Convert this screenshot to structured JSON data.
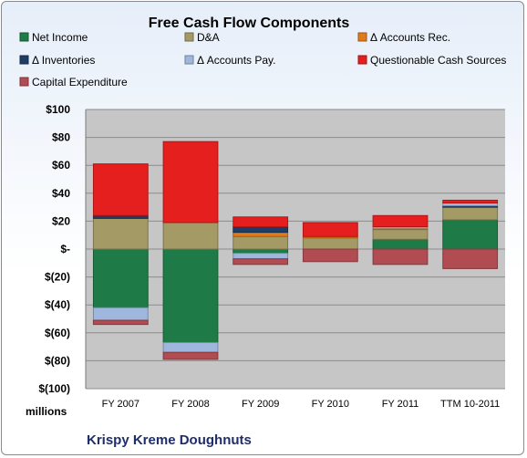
{
  "chart_data": {
    "type": "bar",
    "stacked": true,
    "title": "Free Cash Flow Components",
    "units_label": "millions",
    "footer": "Krispy Kreme Doughnuts",
    "categories": [
      "FY 2007",
      "FY 2008",
      "FY 2009",
      "FY 2010",
      "FY 2011",
      "TTM 10-2011"
    ],
    "ylim": [
      -100,
      100
    ],
    "yticks": [
      100,
      80,
      60,
      40,
      20,
      0,
      -20,
      -40,
      -60,
      -80,
      -100
    ],
    "ytick_labels": [
      "$100",
      "$80",
      "$60",
      "$40",
      "$20",
      "$-",
      "$(20)",
      "$(40)",
      "$(60)",
      "$(80)",
      "$(100)"
    ],
    "grid": true,
    "legend_position": "top",
    "series": [
      {
        "name": "Net Income",
        "color": "#1e7a47",
        "values": [
          -42,
          -67,
          -3,
          0,
          7,
          21
        ]
      },
      {
        "name": "D&A",
        "color": "#a39a66",
        "values": [
          22,
          19,
          9,
          8,
          7,
          9
        ]
      },
      {
        "name": "Δ Accounts Rec.",
        "color": "#e07b1d",
        "values": [
          0,
          0,
          3,
          1,
          1,
          0
        ]
      },
      {
        "name": "Δ Inventories",
        "color": "#1f3c66",
        "values": [
          2,
          0,
          4,
          0,
          0,
          1
        ]
      },
      {
        "name": "Δ Accounts Pay.",
        "color": "#9fb7dc",
        "values": [
          -9,
          -7,
          -4,
          0,
          1,
          2
        ]
      },
      {
        "name": "Questionable Cash Sources",
        "color": "#e51e1e",
        "values": [
          37,
          58,
          7,
          10,
          8,
          2
        ]
      },
      {
        "name": "Capital Expenditure",
        "color": "#b04c52",
        "values": [
          -3,
          -5,
          -4,
          -9,
          -11,
          -14
        ]
      }
    ]
  }
}
